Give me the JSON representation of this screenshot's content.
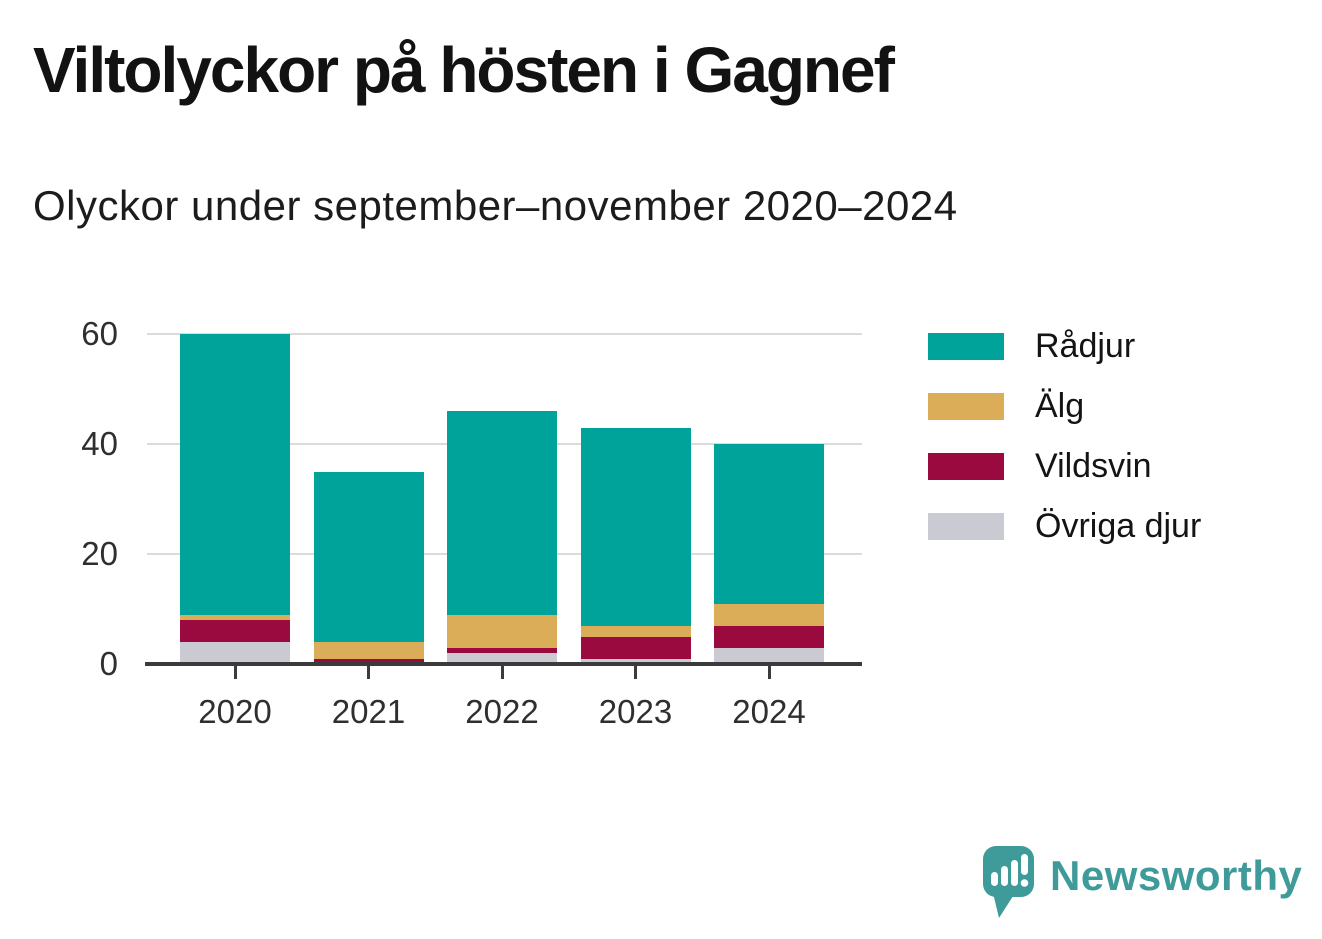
{
  "title": "Viltolyckor på hösten i Gagnef",
  "subtitle": "Olyckor under september–november 2020–2024",
  "brand": {
    "name": "Newsworthy",
    "color": "#3f9b99",
    "icon": "speech-bubble-bar-chart-exclamation-icon"
  },
  "colors": {
    "axis": "#3b3b3b",
    "grid": "#dbdbdb",
    "tick_text": "#2f2f2f",
    "title_text": "#121212"
  },
  "chart_data": {
    "type": "bar",
    "stacked": true,
    "title": "Viltolyckor på hösten i Gagnef",
    "subtitle": "Olyckor under september–november 2020–2024",
    "categories": [
      "2020",
      "2021",
      "2022",
      "2023",
      "2024"
    ],
    "series": [
      {
        "name": "Rådjur",
        "color": "#00a399",
        "values": [
          51,
          31,
          37,
          36,
          29
        ]
      },
      {
        "name": "Älg",
        "color": "#dcad59",
        "values": [
          1,
          3,
          6,
          2,
          4
        ]
      },
      {
        "name": "Vildsvin",
        "color": "#9b0a3e",
        "values": [
          4,
          1,
          1,
          4,
          4
        ]
      },
      {
        "name": "Övriga djur",
        "color": "#cacad3",
        "values": [
          4,
          0,
          2,
          1,
          3
        ]
      }
    ],
    "stack_order_bottom_to_top": [
      "Övriga djur",
      "Vildsvin",
      "Älg",
      "Rådjur"
    ],
    "totals": [
      60,
      35,
      46,
      43,
      40
    ],
    "xlabel": "",
    "ylabel": "",
    "ylim": [
      0,
      60
    ],
    "yticks": [
      0,
      20,
      40,
      60
    ],
    "grid": "horizontal",
    "legend_position": "right"
  }
}
